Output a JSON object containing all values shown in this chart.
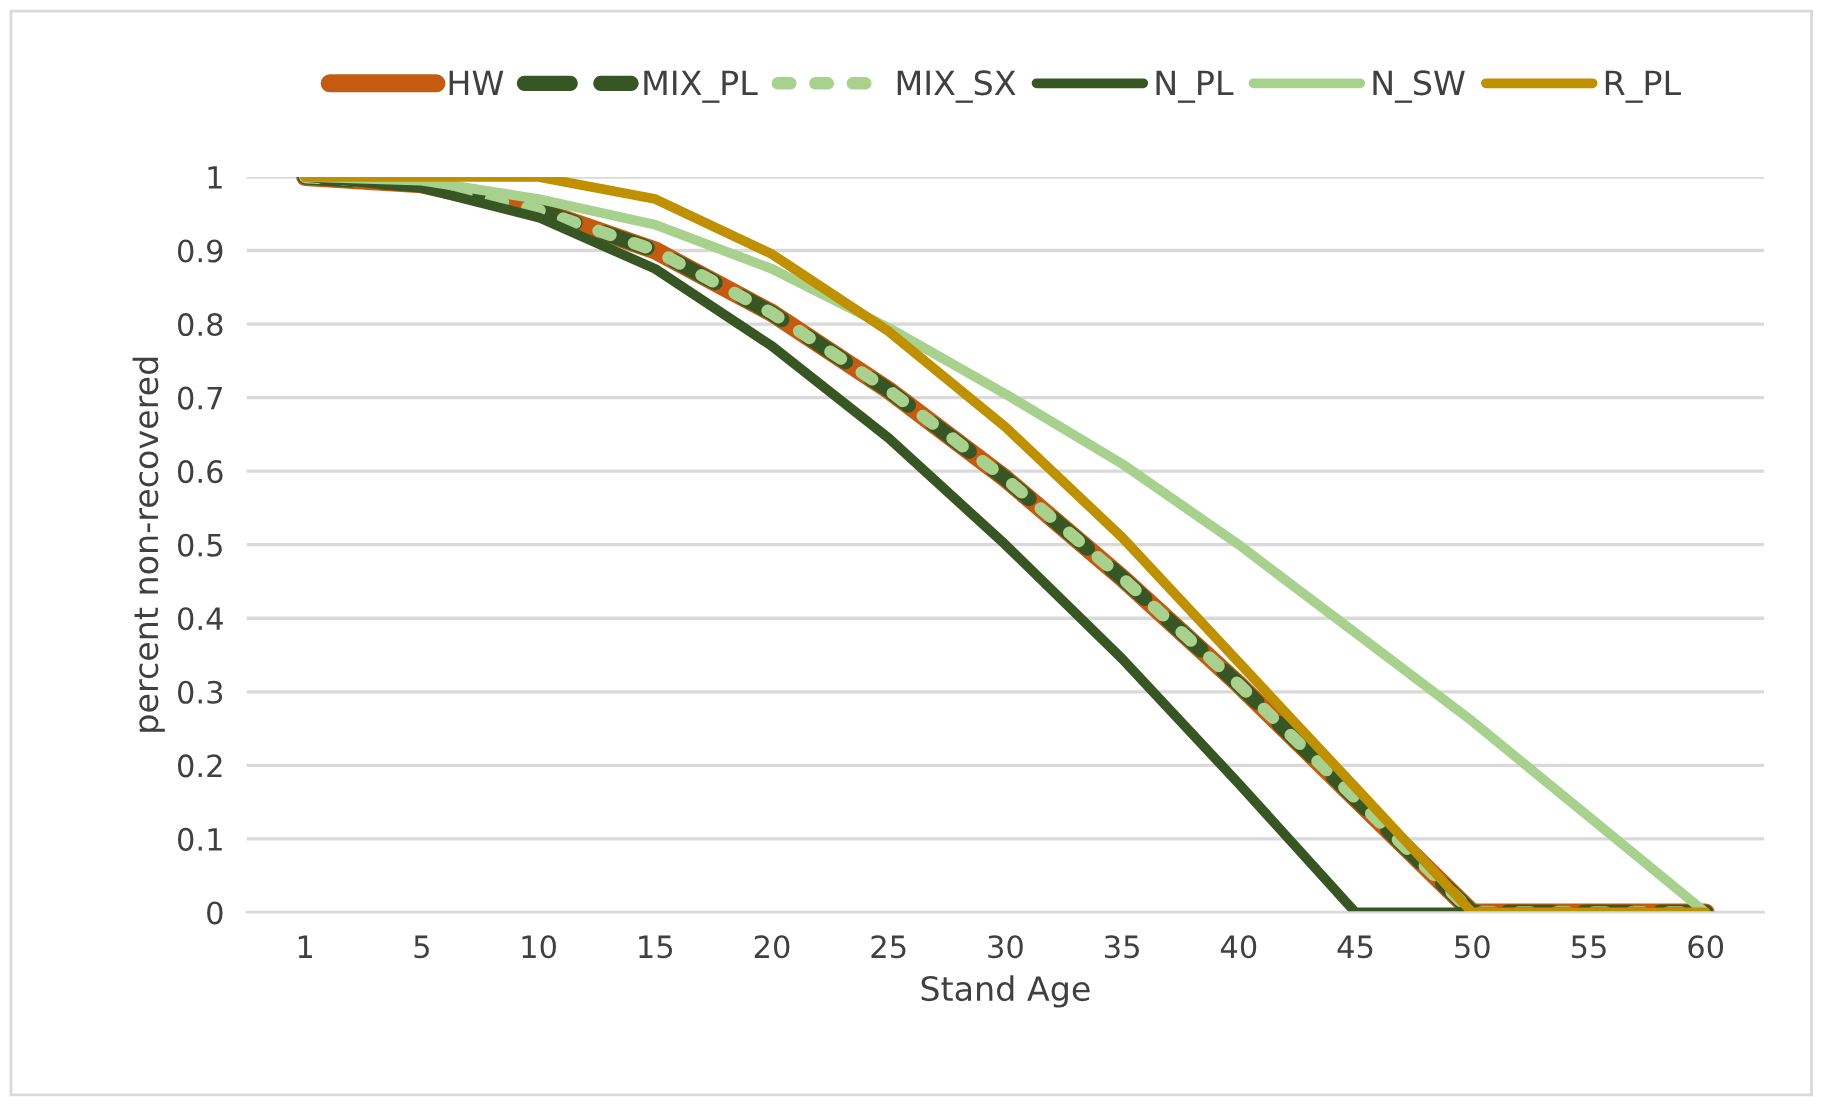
{
  "chart_data": {
    "type": "line",
    "xlabel": "Stand Age",
    "ylabel": "percent non-recovered",
    "categories": [
      "1",
      "5",
      "10",
      "15",
      "20",
      "25",
      "30",
      "35",
      "40",
      "45",
      "50",
      "55",
      "60"
    ],
    "series": [
      {
        "name": "HW",
        "color": "#c55a11",
        "line_style": "solid",
        "values": [
          1,
          0.99,
          0.955,
          0.9,
          0.815,
          0.71,
          0.59,
          0.455,
          0.31,
          0.155,
          0,
          0,
          0
        ]
      },
      {
        "name": "MIX_PL",
        "color": "#375623",
        "line_style": "dashed",
        "values": [
          1,
          0.99,
          0.955,
          0.9,
          0.815,
          0.71,
          0.59,
          0.455,
          0.31,
          0.155,
          0,
          0,
          0
        ]
      },
      {
        "name": "MIX_SX",
        "color": "#a9d18e",
        "line_style": "dotted",
        "values": [
          1,
          0.99,
          0.955,
          0.9,
          0.815,
          0.71,
          0.59,
          0.455,
          0.31,
          0.155,
          0,
          0,
          0
        ]
      },
      {
        "name": "N_PL",
        "color": "#375623",
        "line_style": "solid",
        "values": [
          1,
          0.985,
          0.945,
          0.875,
          0.77,
          0.645,
          0.5,
          0.345,
          0.175,
          0,
          0,
          0,
          0
        ]
      },
      {
        "name": "N_SW",
        "color": "#a9d18e",
        "line_style": "solid",
        "values": [
          1,
          0.995,
          0.97,
          0.935,
          0.875,
          0.795,
          0.705,
          0.61,
          0.5,
          0.38,
          0.26,
          0.13,
          0
        ]
      },
      {
        "name": "R_PL",
        "color": "#bf9000",
        "line_style": "solid",
        "values": [
          1,
          1,
          1,
          0.97,
          0.895,
          0.79,
          0.66,
          0.51,
          0.34,
          0.17,
          0,
          0,
          0
        ]
      }
    ],
    "ylim": [
      0,
      1
    ],
    "yticks": [
      0,
      0.1,
      0.2,
      0.3,
      0.4,
      0.5,
      0.6,
      0.7,
      0.8,
      0.9,
      1
    ],
    "grid": "y",
    "legend": "top",
    "marker": "none"
  }
}
